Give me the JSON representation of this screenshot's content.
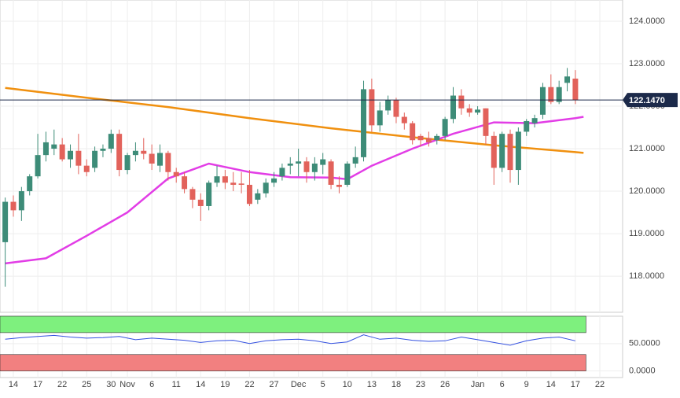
{
  "chart_data": [
    {
      "type": "candlestick",
      "xlim": [
        -0.64,
        75.8
      ],
      "xticks": [
        {
          "value": 1,
          "label": "14"
        },
        {
          "value": 4,
          "label": "17"
        },
        {
          "value": 7,
          "label": "22"
        },
        {
          "value": 10,
          "label": "25"
        },
        {
          "value": 13,
          "label": "30"
        },
        {
          "value": 15,
          "label": "Nov"
        },
        {
          "value": 18,
          "label": "6"
        },
        {
          "value": 21,
          "label": "11"
        },
        {
          "value": 24,
          "label": "14"
        },
        {
          "value": 27,
          "label": "19"
        },
        {
          "value": 30,
          "label": "22"
        },
        {
          "value": 33,
          "label": "27"
        },
        {
          "value": 36,
          "label": "Dec"
        },
        {
          "value": 39,
          "label": "5"
        },
        {
          "value": 42,
          "label": "10"
        },
        {
          "value": 45,
          "label": "13"
        },
        {
          "value": 48,
          "label": "18"
        },
        {
          "value": 51,
          "label": "23"
        },
        {
          "value": 54,
          "label": "26"
        },
        {
          "value": 58,
          "label": "Jan"
        },
        {
          "value": 61,
          "label": "6"
        },
        {
          "value": 64,
          "label": "9"
        },
        {
          "value": 67,
          "label": "14"
        },
        {
          "value": 70,
          "label": "17"
        },
        {
          "value": 73,
          "label": "22"
        }
      ],
      "ylim": [
        117.15,
        124.5
      ],
      "yticks": [
        {
          "value": 118,
          "label": "118.0000"
        },
        {
          "value": 119,
          "label": "119.0000"
        },
        {
          "value": 120,
          "label": "120.0000"
        },
        {
          "value": 121,
          "label": "121.0000"
        },
        {
          "value": 122,
          "label": "122.0000"
        },
        {
          "value": 123,
          "label": "123.0000"
        },
        {
          "value": 124,
          "label": "124.0000"
        }
      ],
      "grid": true,
      "up_color": "#3d8c78",
      "down_color": "#e2625b",
      "open": [
        118.8,
        119.75,
        119.55,
        120.0,
        120.35,
        120.85,
        121.0,
        121.1,
        120.75,
        120.95,
        120.6,
        120.55,
        120.95,
        121.0,
        121.35,
        120.5,
        120.85,
        120.95,
        120.88,
        120.6,
        120.9,
        120.45,
        120.35,
        120.05,
        119.8,
        119.65,
        120.2,
        120.35,
        120.2,
        120.18,
        120.15,
        119.8,
        119.95,
        120.2,
        120.35,
        120.6,
        120.65,
        120.7,
        120.45,
        120.62,
        120.7,
        120.15,
        120.15,
        120.65,
        120.8,
        122.4,
        121.55,
        121.9,
        122.15,
        121.75,
        121.6,
        121.3,
        121.25,
        121.2,
        121.3,
        121.7,
        122.25,
        121.95,
        121.85,
        121.95,
        121.3,
        120.55,
        121.35,
        120.5,
        121.4,
        121.6,
        121.8,
        122.45,
        122.1,
        122.55,
        122.65
      ],
      "high": [
        119.85,
        119.9,
        120.1,
        120.4,
        121.35,
        121.4,
        121.45,
        121.25,
        121.1,
        121.35,
        120.75,
        121.05,
        121.1,
        121.45,
        121.45,
        120.9,
        121.15,
        121.25,
        121.1,
        121.1,
        120.95,
        120.55,
        120.45,
        120.1,
        119.95,
        120.25,
        120.6,
        120.5,
        120.45,
        120.45,
        120.5,
        120.05,
        120.3,
        120.45,
        120.65,
        120.8,
        121.0,
        120.8,
        120.8,
        120.9,
        120.75,
        120.35,
        120.7,
        121.05,
        122.6,
        122.65,
        122.1,
        122.25,
        122.2,
        121.85,
        121.65,
        121.35,
        121.4,
        121.35,
        121.75,
        122.45,
        122.4,
        122.05,
        122.0,
        121.95,
        121.4,
        121.4,
        121.45,
        121.5,
        121.7,
        121.8,
        122.55,
        122.75,
        122.6,
        122.9,
        122.85
      ],
      "low": [
        117.75,
        119.4,
        119.3,
        119.9,
        120.3,
        120.7,
        120.85,
        120.7,
        120.55,
        120.4,
        120.35,
        120.45,
        120.8,
        120.9,
        120.35,
        120.4,
        120.7,
        120.75,
        120.5,
        120.45,
        120.25,
        120.2,
        119.95,
        119.6,
        119.3,
        119.55,
        120.1,
        120.05,
        120.0,
        119.95,
        119.65,
        119.7,
        119.85,
        120.1,
        120.25,
        120.4,
        120.35,
        120.2,
        120.25,
        120.4,
        120.05,
        119.95,
        120.1,
        120.55,
        120.7,
        121.4,
        121.4,
        121.8,
        121.6,
        121.45,
        121.1,
        121.05,
        121.05,
        121.1,
        121.2,
        121.6,
        121.8,
        121.75,
        121.8,
        121.1,
        120.15,
        120.45,
        120.2,
        120.15,
        121.3,
        121.5,
        121.7,
        122.05,
        122.05,
        122.35,
        122.05
      ],
      "close": [
        119.75,
        119.55,
        120.0,
        120.35,
        120.85,
        121.15,
        121.1,
        120.75,
        120.95,
        120.6,
        120.45,
        120.95,
        121.0,
        121.35,
        120.5,
        120.85,
        120.95,
        120.88,
        120.65,
        120.9,
        120.45,
        120.35,
        120.05,
        119.8,
        119.65,
        120.2,
        120.35,
        120.2,
        120.15,
        120.15,
        119.7,
        119.95,
        120.2,
        120.3,
        120.55,
        120.65,
        120.7,
        120.45,
        120.65,
        120.75,
        120.15,
        120.1,
        120.65,
        120.8,
        122.4,
        121.55,
        121.9,
        122.15,
        121.75,
        121.6,
        121.2,
        121.2,
        121.15,
        121.3,
        121.7,
        122.25,
        121.95,
        121.85,
        121.92,
        121.3,
        120.55,
        121.35,
        120.5,
        121.4,
        121.65,
        121.72,
        122.45,
        122.1,
        122.45,
        122.7,
        122.147
      ],
      "overlays": [
        {
          "color": "#f0900f",
          "x": [
            0,
            10,
            20,
            30,
            40,
            50,
            60,
            70,
            71
          ],
          "values": [
            122.43,
            122.2,
            121.98,
            121.72,
            121.48,
            121.27,
            121.08,
            120.92,
            120.9
          ]
        },
        {
          "color": "#e23de6",
          "x": [
            0,
            5,
            10,
            15,
            20,
            25,
            30,
            35,
            40,
            42,
            45,
            50,
            55,
            60,
            65,
            70,
            71
          ],
          "values": [
            118.3,
            118.42,
            118.95,
            119.5,
            120.3,
            120.65,
            120.45,
            120.33,
            120.32,
            120.28,
            120.6,
            121.0,
            121.35,
            121.62,
            121.6,
            121.72,
            121.75
          ]
        }
      ],
      "last_price": {
        "value": 122.147,
        "label": "122.1470"
      },
      "last_color": "#1c2a4a"
    },
    {
      "type": "line",
      "ylim": [
        -12,
        100
      ],
      "yticks": [
        {
          "value": 0,
          "label": "0.0000"
        },
        {
          "value": 50,
          "label": "50.0000"
        }
      ],
      "bands": [
        {
          "from": 70,
          "to": 100,
          "color": "#7ef07e"
        },
        {
          "from": 0,
          "to": 30,
          "color": "#f28080"
        }
      ],
      "band_end": 71.3,
      "color": "#3350e0",
      "x": [
        0,
        2,
        4,
        6,
        8,
        10,
        12,
        14,
        16,
        18,
        20,
        22,
        24,
        26,
        28,
        30,
        32,
        34,
        36,
        38,
        40,
        42,
        44,
        46,
        48,
        50,
        52,
        54,
        56,
        58,
        60,
        62,
        64,
        66,
        68,
        70
      ],
      "values": [
        58,
        61,
        63,
        65,
        62,
        60,
        61,
        63,
        57,
        60,
        58,
        56,
        52,
        55,
        56,
        50,
        55,
        57,
        58,
        55,
        50,
        53,
        66,
        58,
        60,
        56,
        54,
        55,
        62,
        57,
        52,
        47,
        55,
        60,
        62,
        55
      ]
    }
  ]
}
